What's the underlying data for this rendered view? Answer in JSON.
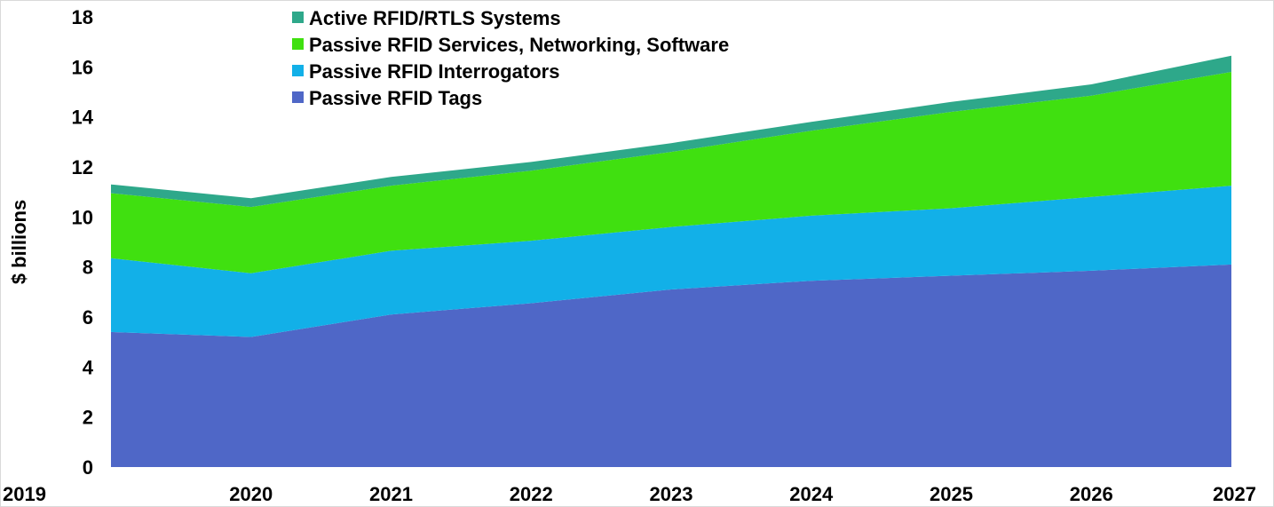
{
  "chart_data": {
    "type": "area",
    "stacked": true,
    "x": [
      "2019",
      "2020",
      "2021",
      "2022",
      "2023",
      "2024",
      "2025",
      "2026",
      "2027"
    ],
    "xlabel": "",
    "ylabel": "$ billions",
    "ylim": [
      0,
      18
    ],
    "yticks": [
      "0",
      "2",
      "4",
      "6",
      "8",
      "10",
      "12",
      "14",
      "16",
      "18"
    ],
    "grid": false,
    "legend_position": "top-left",
    "series": [
      {
        "name": "Passive RFID Tags",
        "color": "#4f67c7",
        "values": [
          5.4,
          5.2,
          6.1,
          6.55,
          7.1,
          7.45,
          7.65,
          7.85,
          8.1
        ]
      },
      {
        "name": "Passive RFID Interrogators",
        "color": "#12b0e8",
        "values": [
          2.95,
          2.55,
          2.55,
          2.5,
          2.5,
          2.6,
          2.7,
          2.95,
          3.15
        ]
      },
      {
        "name": "Passive RFID Services, Networking, Software",
        "color": "#40e010",
        "values": [
          2.6,
          2.65,
          2.6,
          2.8,
          3.0,
          3.4,
          3.85,
          4.05,
          4.55
        ]
      },
      {
        "name": "Active RFID/RTLS Systems",
        "color": "#2ea88a",
        "values": [
          0.35,
          0.35,
          0.35,
          0.35,
          0.35,
          0.35,
          0.4,
          0.45,
          0.65
        ]
      }
    ]
  }
}
